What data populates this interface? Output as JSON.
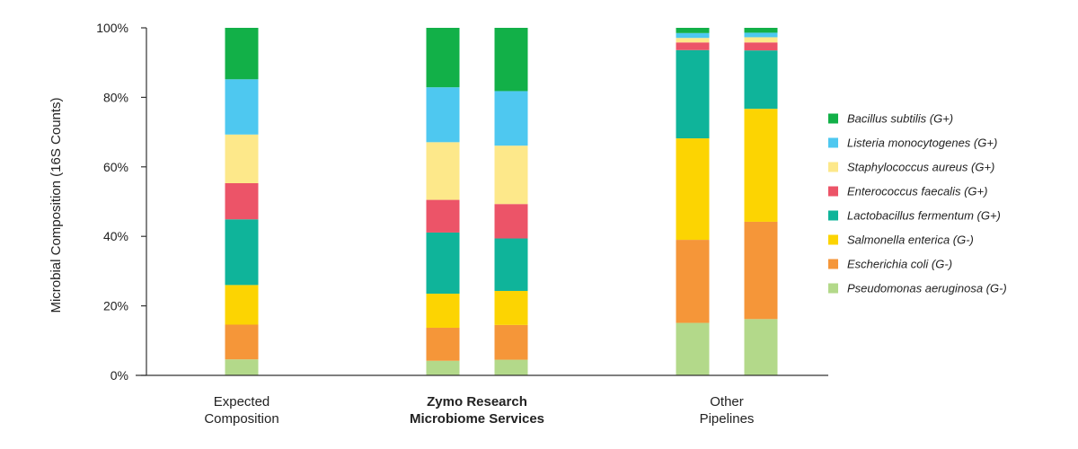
{
  "chart_data": {
    "type": "bar",
    "stacked": true,
    "title": "",
    "xlabel": "",
    "ylabel": "Microbial Composition (16S Counts)",
    "ylim": [
      0,
      100
    ],
    "yticks": [
      "0%",
      "20%",
      "40%",
      "60%",
      "80%",
      "100%"
    ],
    "groups": [
      {
        "label_lines": [
          "Expected",
          "Composition"
        ],
        "bold": false,
        "bars": [
          0
        ]
      },
      {
        "label_lines": [
          "Zymo Research",
          "Microbiome Services"
        ],
        "bold": true,
        "bars": [
          1,
          2
        ]
      },
      {
        "label_lines": [
          "Other",
          "Pipelines"
        ],
        "bold": false,
        "bars": [
          3,
          4
        ]
      }
    ],
    "series": [
      {
        "name": "Pseudomonas aeruginosa (G-)",
        "color": "#b3d98a",
        "values": [
          4.6,
          4.2,
          4.5,
          15.1,
          16.2
        ]
      },
      {
        "name": "Escherichia coli  (G-)",
        "color": "#f59639",
        "values": [
          10.0,
          9.5,
          10.0,
          23.9,
          28.0
        ]
      },
      {
        "name": "Salmonella enterica (G-)",
        "color": "#fcd402",
        "values": [
          11.4,
          9.8,
          9.8,
          29.2,
          32.5
        ]
      },
      {
        "name": "Lactobacillus fermentum (G+)",
        "color": "#0fb49a",
        "values": [
          18.9,
          17.6,
          15.1,
          25.4,
          16.8
        ]
      },
      {
        "name": "Enterococcus faecalis (G+)",
        "color": "#ec5468",
        "values": [
          10.4,
          9.4,
          9.9,
          2.2,
          2.3
        ]
      },
      {
        "name": "Staphylococcus aureus (G+)",
        "color": "#fde88a",
        "values": [
          14.0,
          16.6,
          16.8,
          1.3,
          1.5
        ]
      },
      {
        "name": "Listeria monocytogenes (G+)",
        "color": "#4ec8f0",
        "values": [
          15.9,
          15.8,
          15.7,
          1.4,
          1.3
        ]
      },
      {
        "name": "Bacillus subtilis (G+)",
        "color": "#12b048",
        "values": [
          14.8,
          17.1,
          18.2,
          1.5,
          1.4
        ]
      }
    ],
    "legend_order": [
      7,
      6,
      5,
      4,
      3,
      2,
      1,
      0
    ],
    "legend_position": "right"
  }
}
